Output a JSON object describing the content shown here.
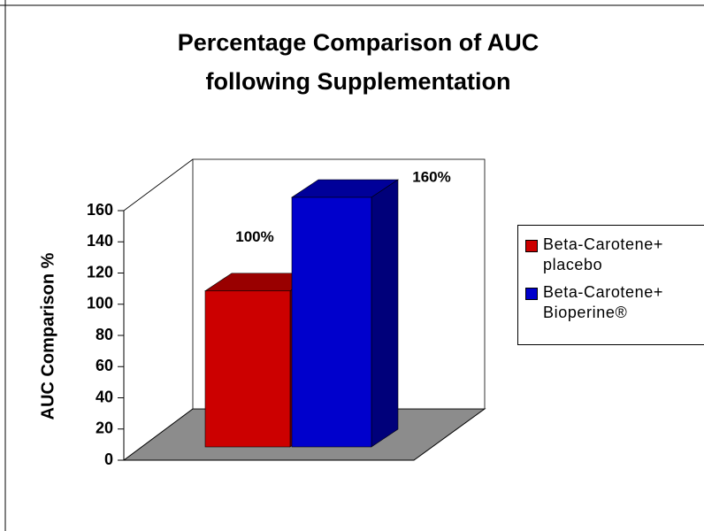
{
  "chart_data": {
    "type": "bar3d",
    "title": "Percentage Comparison of AUC following Supplementation",
    "y_label": "AUC Comparison %",
    "categories": [
      null
    ],
    "series": [
      {
        "name": "Beta-Carotene+ placebo",
        "color": "#cc0000",
        "values": [
          100
        ],
        "value_labels": [
          "100%"
        ]
      },
      {
        "name": "Beta-Carotene+ Bioperine®",
        "color": "#0000cc",
        "values": [
          160
        ],
        "value_labels": [
          "160%"
        ]
      }
    ],
    "ylim": [
      0,
      160
    ],
    "yticks": [
      0,
      20,
      40,
      60,
      80,
      100,
      120,
      140,
      160
    ],
    "legend": "right"
  }
}
